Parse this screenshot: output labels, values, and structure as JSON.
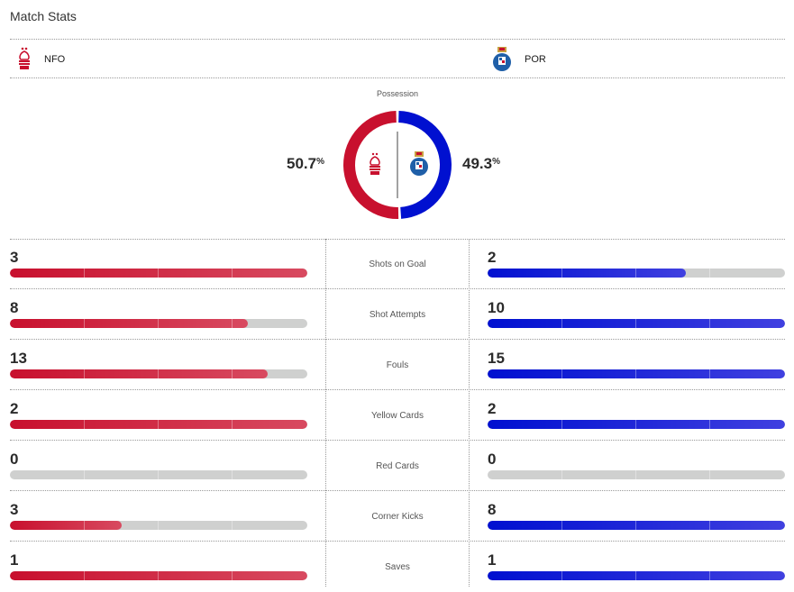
{
  "header": {
    "title": "Match Stats"
  },
  "teams": {
    "home": {
      "abbr": "NFO",
      "color": "#c8102e",
      "logo": "nottingham-forest-crest-icon"
    },
    "away": {
      "abbr": "POR",
      "color": "#0010d0",
      "logo": "fc-porto-crest-icon"
    }
  },
  "possession": {
    "label": "Possession",
    "home_value": "50.7",
    "away_value": "49.3",
    "unit": "%",
    "home_pct": 50.7,
    "away_pct": 49.3
  },
  "stats": [
    {
      "label": "Shots on Goal",
      "home": "3",
      "away": "2",
      "home_fill": 1.0,
      "away_fill": 0.667
    },
    {
      "label": "Shot Attempts",
      "home": "8",
      "away": "10",
      "home_fill": 0.8,
      "away_fill": 1.0
    },
    {
      "label": "Fouls",
      "home": "13",
      "away": "15",
      "home_fill": 0.867,
      "away_fill": 1.0
    },
    {
      "label": "Yellow Cards",
      "home": "2",
      "away": "2",
      "home_fill": 1.0,
      "away_fill": 1.0
    },
    {
      "label": "Red Cards",
      "home": "0",
      "away": "0",
      "home_fill": 0,
      "away_fill": 0
    },
    {
      "label": "Corner Kicks",
      "home": "3",
      "away": "8",
      "home_fill": 0.375,
      "away_fill": 1.0
    },
    {
      "label": "Saves",
      "home": "1",
      "away": "1",
      "home_fill": 1.0,
      "away_fill": 1.0
    }
  ]
}
